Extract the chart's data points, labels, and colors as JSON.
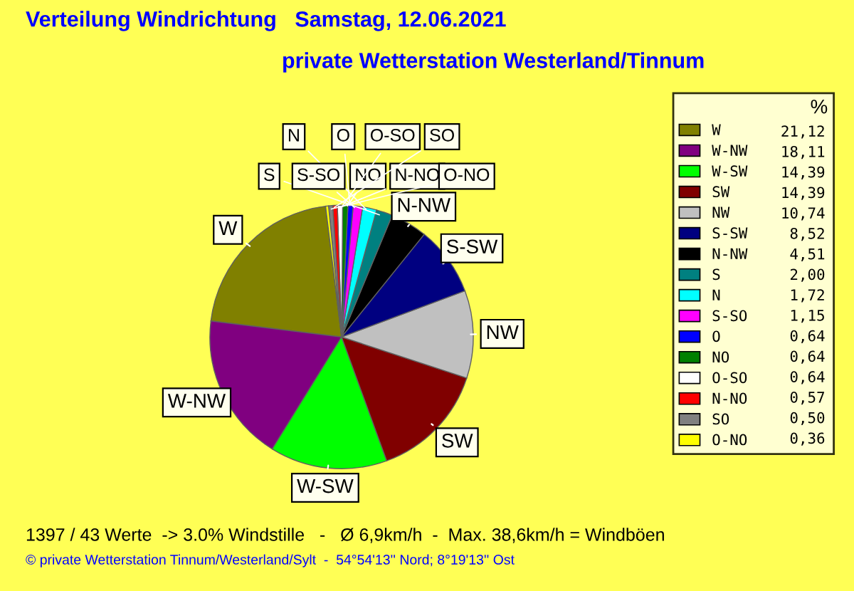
{
  "chart_data": {
    "type": "pie",
    "title": "Verteilung Windrichtung   Samstag, 12.06.2021",
    "subtitle": "private Wetterstation Westerland/Tinnum",
    "categories": [
      "W",
      "W-NW",
      "W-SW",
      "SW",
      "NW",
      "S-SW",
      "N-NW",
      "S",
      "N",
      "S-SO",
      "O",
      "NO",
      "O-SO",
      "N-NO",
      "SO",
      "O-NO"
    ],
    "values": [
      21.12,
      18.11,
      14.39,
      14.39,
      10.74,
      8.52,
      4.51,
      2.0,
      1.72,
      1.15,
      0.64,
      0.64,
      0.64,
      0.57,
      0.5,
      0.36
    ],
    "colors": [
      "#808000",
      "#800080",
      "#00ff00",
      "#800000",
      "#c0c0c0",
      "#000080",
      "#000000",
      "#008080",
      "#00ffff",
      "#ff00ff",
      "#0000ff",
      "#008000",
      "#ffffff",
      "#ff0000",
      "#808080",
      "#ffff00"
    ],
    "value_labels": [
      "21,12",
      "18,11",
      "14,39",
      "14,39",
      "10,74",
      "8,52",
      "4,51",
      "2,00",
      "1,72",
      "1,15",
      "0,64",
      "0,64",
      "0,64",
      "0,57",
      "0,50",
      "0,36"
    ],
    "legend": "right",
    "legend_title": "%",
    "annotations": [
      "1397 / 43 Werte  -> 3.0% Windstille   -   Ø 6,9km/h  -  Max. 38,6km/h = Windböen",
      "© private Wetterstation Tinnum/Westerland/Sylt  -  54°54'13'' Nord; 8°19'13'' Ost"
    ]
  }
}
